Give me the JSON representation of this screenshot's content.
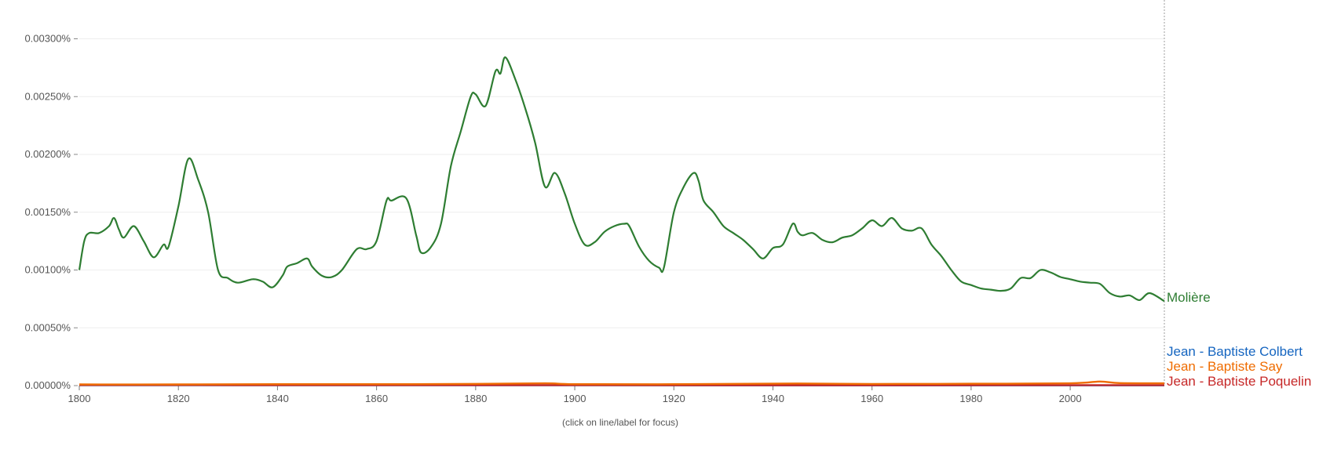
{
  "chart_data": {
    "type": "line",
    "title": "",
    "xlabel": "",
    "ylabel": "",
    "xlim": [
      1800,
      2019
    ],
    "ylim": [
      0,
      0.0032
    ],
    "x_ticks": [
      1800,
      1820,
      1840,
      1860,
      1880,
      1900,
      1920,
      1940,
      1960,
      1980,
      2000
    ],
    "y_ticks": [
      {
        "value": 0,
        "label": "0.00000%"
      },
      {
        "value": 0.0005,
        "label": "0.00050%"
      },
      {
        "value": 0.001,
        "label": "0.00100%"
      },
      {
        "value": 0.0015,
        "label": "0.00150%"
      },
      {
        "value": 0.002,
        "label": "0.00200%"
      },
      {
        "value": 0.0025,
        "label": "0.00250%"
      },
      {
        "value": 0.003,
        "label": "0.00300%"
      }
    ],
    "grid": "horizontal",
    "legend": "line-end labels",
    "focus_line_x": 2019,
    "note": "(click on line/label for focus)",
    "series": [
      {
        "name": "Molière",
        "color": "#2e7d32",
        "points": [
          [
            1800,
            0.001
          ],
          [
            1801,
            0.00125
          ],
          [
            1802,
            0.00132
          ],
          [
            1804,
            0.00132
          ],
          [
            1806,
            0.00138
          ],
          [
            1807,
            0.00145
          ],
          [
            1808,
            0.00135
          ],
          [
            1809,
            0.00128
          ],
          [
            1811,
            0.00138
          ],
          [
            1813,
            0.00125
          ],
          [
            1815,
            0.00111
          ],
          [
            1817,
            0.00122
          ],
          [
            1818,
            0.0012
          ],
          [
            1820,
            0.00155
          ],
          [
            1822,
            0.00196
          ],
          [
            1824,
            0.00178
          ],
          [
            1826,
            0.0015
          ],
          [
            1828,
            0.001
          ],
          [
            1830,
            0.00093
          ],
          [
            1832,
            0.00089
          ],
          [
            1835,
            0.00092
          ],
          [
            1837,
            0.0009
          ],
          [
            1839,
            0.00085
          ],
          [
            1841,
            0.00095
          ],
          [
            1842,
            0.00103
          ],
          [
            1844,
            0.00106
          ],
          [
            1846,
            0.0011
          ],
          [
            1847,
            0.00103
          ],
          [
            1849,
            0.00095
          ],
          [
            1851,
            0.00094
          ],
          [
            1853,
            0.001
          ],
          [
            1856,
            0.00118
          ],
          [
            1858,
            0.00118
          ],
          [
            1860,
            0.00125
          ],
          [
            1862,
            0.0016
          ],
          [
            1863,
            0.0016
          ],
          [
            1866,
            0.00162
          ],
          [
            1868,
            0.0013
          ],
          [
            1869,
            0.00115
          ],
          [
            1871,
            0.0012
          ],
          [
            1873,
            0.0014
          ],
          [
            1875,
            0.0019
          ],
          [
            1877,
            0.0022
          ],
          [
            1879,
            0.0025
          ],
          [
            1880,
            0.00252
          ],
          [
            1882,
            0.00242
          ],
          [
            1884,
            0.00272
          ],
          [
            1885,
            0.0027
          ],
          [
            1886,
            0.00284
          ],
          [
            1888,
            0.00265
          ],
          [
            1890,
            0.0024
          ],
          [
            1892,
            0.0021
          ],
          [
            1894,
            0.00172
          ],
          [
            1896,
            0.00184
          ],
          [
            1898,
            0.00166
          ],
          [
            1900,
            0.0014
          ],
          [
            1902,
            0.00122
          ],
          [
            1904,
            0.00124
          ],
          [
            1906,
            0.00133
          ],
          [
            1908,
            0.00138
          ],
          [
            1910,
            0.0014
          ],
          [
            1911,
            0.00138
          ],
          [
            1913,
            0.0012
          ],
          [
            1915,
            0.00108
          ],
          [
            1917,
            0.00102
          ],
          [
            1918,
            0.00102
          ],
          [
            1920,
            0.0015
          ],
          [
            1922,
            0.00172
          ],
          [
            1924,
            0.00184
          ],
          [
            1925,
            0.00177
          ],
          [
            1926,
            0.0016
          ],
          [
            1928,
            0.0015
          ],
          [
            1930,
            0.00138
          ],
          [
            1932,
            0.00132
          ],
          [
            1934,
            0.00126
          ],
          [
            1936,
            0.00118
          ],
          [
            1938,
            0.0011
          ],
          [
            1940,
            0.00119
          ],
          [
            1942,
            0.00122
          ],
          [
            1944,
            0.0014
          ],
          [
            1945,
            0.00133
          ],
          [
            1946,
            0.0013
          ],
          [
            1948,
            0.00132
          ],
          [
            1950,
            0.00126
          ],
          [
            1952,
            0.00124
          ],
          [
            1954,
            0.00128
          ],
          [
            1956,
            0.0013
          ],
          [
            1958,
            0.00136
          ],
          [
            1960,
            0.00143
          ],
          [
            1962,
            0.00138
          ],
          [
            1964,
            0.00145
          ],
          [
            1966,
            0.00136
          ],
          [
            1968,
            0.00134
          ],
          [
            1970,
            0.00136
          ],
          [
            1972,
            0.00122
          ],
          [
            1974,
            0.00112
          ],
          [
            1976,
            0.001
          ],
          [
            1978,
            0.0009
          ],
          [
            1980,
            0.00087
          ],
          [
            1982,
            0.00084
          ],
          [
            1984,
            0.00083
          ],
          [
            1986,
            0.00082
          ],
          [
            1988,
            0.00084
          ],
          [
            1990,
            0.00093
          ],
          [
            1992,
            0.00093
          ],
          [
            1994,
            0.001
          ],
          [
            1996,
            0.00098
          ],
          [
            1998,
            0.00094
          ],
          [
            2000,
            0.00092
          ],
          [
            2002,
            0.0009
          ],
          [
            2004,
            0.00089
          ],
          [
            2006,
            0.00088
          ],
          [
            2008,
            0.0008
          ],
          [
            2010,
            0.00077
          ],
          [
            2012,
            0.00078
          ],
          [
            2014,
            0.00074
          ],
          [
            2016,
            0.0008
          ],
          [
            2019,
            0.00073
          ]
        ]
      },
      {
        "name": "Jean - Baptiste Colbert",
        "color": "#1565c0",
        "points": [
          [
            1800,
            3e-06
          ],
          [
            1850,
            3e-06
          ],
          [
            1900,
            3e-06
          ],
          [
            1950,
            2e-06
          ],
          [
            2000,
            2e-06
          ],
          [
            2019,
            2e-06
          ]
        ]
      },
      {
        "name": "Jean - Baptiste Say",
        "color": "#ef6c00",
        "points": [
          [
            1800,
            1e-05
          ],
          [
            1820,
            1e-05
          ],
          [
            1840,
            1.2e-05
          ],
          [
            1860,
            1.2e-05
          ],
          [
            1880,
            1.5e-05
          ],
          [
            1894,
            2e-05
          ],
          [
            1900,
            1.2e-05
          ],
          [
            1920,
            1.2e-05
          ],
          [
            1945,
            1.8e-05
          ],
          [
            1960,
            1.4e-05
          ],
          [
            1980,
            1.6e-05
          ],
          [
            2000,
            2e-05
          ],
          [
            2006,
            3.5e-05
          ],
          [
            2010,
            2.2e-05
          ],
          [
            2019,
            2e-05
          ]
        ]
      },
      {
        "name": "Jean - Baptiste Poquelin",
        "color": "#c62828",
        "points": [
          [
            1800,
            5e-06
          ],
          [
            1850,
            4e-06
          ],
          [
            1900,
            4e-06
          ],
          [
            1950,
            3e-06
          ],
          [
            2000,
            4e-06
          ],
          [
            2019,
            4e-06
          ]
        ]
      }
    ]
  }
}
